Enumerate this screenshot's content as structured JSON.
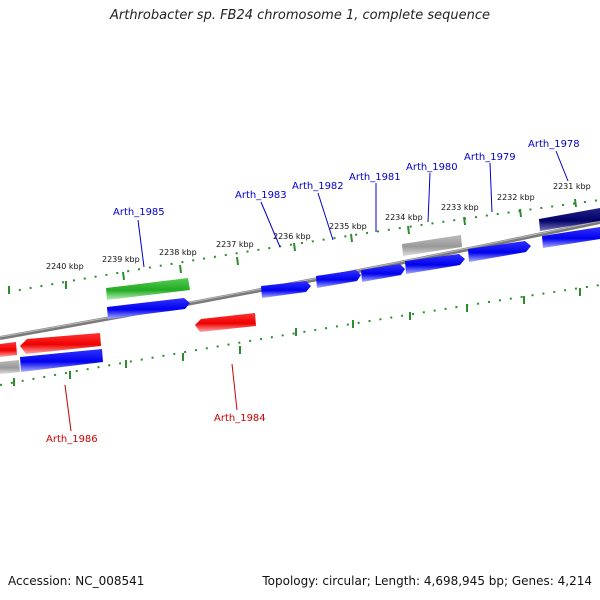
{
  "title": "Arthrobacter sp. FB24 chromosome 1, complete sequence",
  "footer": {
    "accession": "Accession: NC_008541",
    "summary": "Topology: circular; Length: 4,698,945 bp; Genes: 4,214"
  },
  "colors": {
    "backbone": "#7f7f7f",
    "tick": "#2e8b2e",
    "forward_gene": "#0000ee",
    "reverse_gene": "#ee0000",
    "label_forward": "#0000cc",
    "label_reverse": "#cc0000",
    "feature_green": "#33bb33",
    "feature_grey": "#aaaaaa",
    "feature_navy": "#000066"
  },
  "ticks": [
    {
      "label": "2231 kbp"
    },
    {
      "label": "2232 kbp"
    },
    {
      "label": "2233 kbp"
    },
    {
      "label": "2234 kbp"
    },
    {
      "label": "2235 kbp"
    },
    {
      "label": "2236 kbp"
    },
    {
      "label": "2237 kbp"
    },
    {
      "label": "2238 kbp"
    },
    {
      "label": "2239 kbp"
    },
    {
      "label": "2240 kbp"
    }
  ],
  "gene_labels": [
    {
      "text": "Arth_1978",
      "strand": "forward"
    },
    {
      "text": "Arth_1979",
      "strand": "forward"
    },
    {
      "text": "Arth_1980",
      "strand": "forward"
    },
    {
      "text": "Arth_1981",
      "strand": "forward"
    },
    {
      "text": "Arth_1982",
      "strand": "forward"
    },
    {
      "text": "Arth_1983",
      "strand": "forward"
    },
    {
      "text": "Arth_1985",
      "strand": "forward"
    },
    {
      "text": "Arth_1984",
      "strand": "reverse"
    },
    {
      "text": "Arth_1986",
      "strand": "reverse"
    }
  ]
}
